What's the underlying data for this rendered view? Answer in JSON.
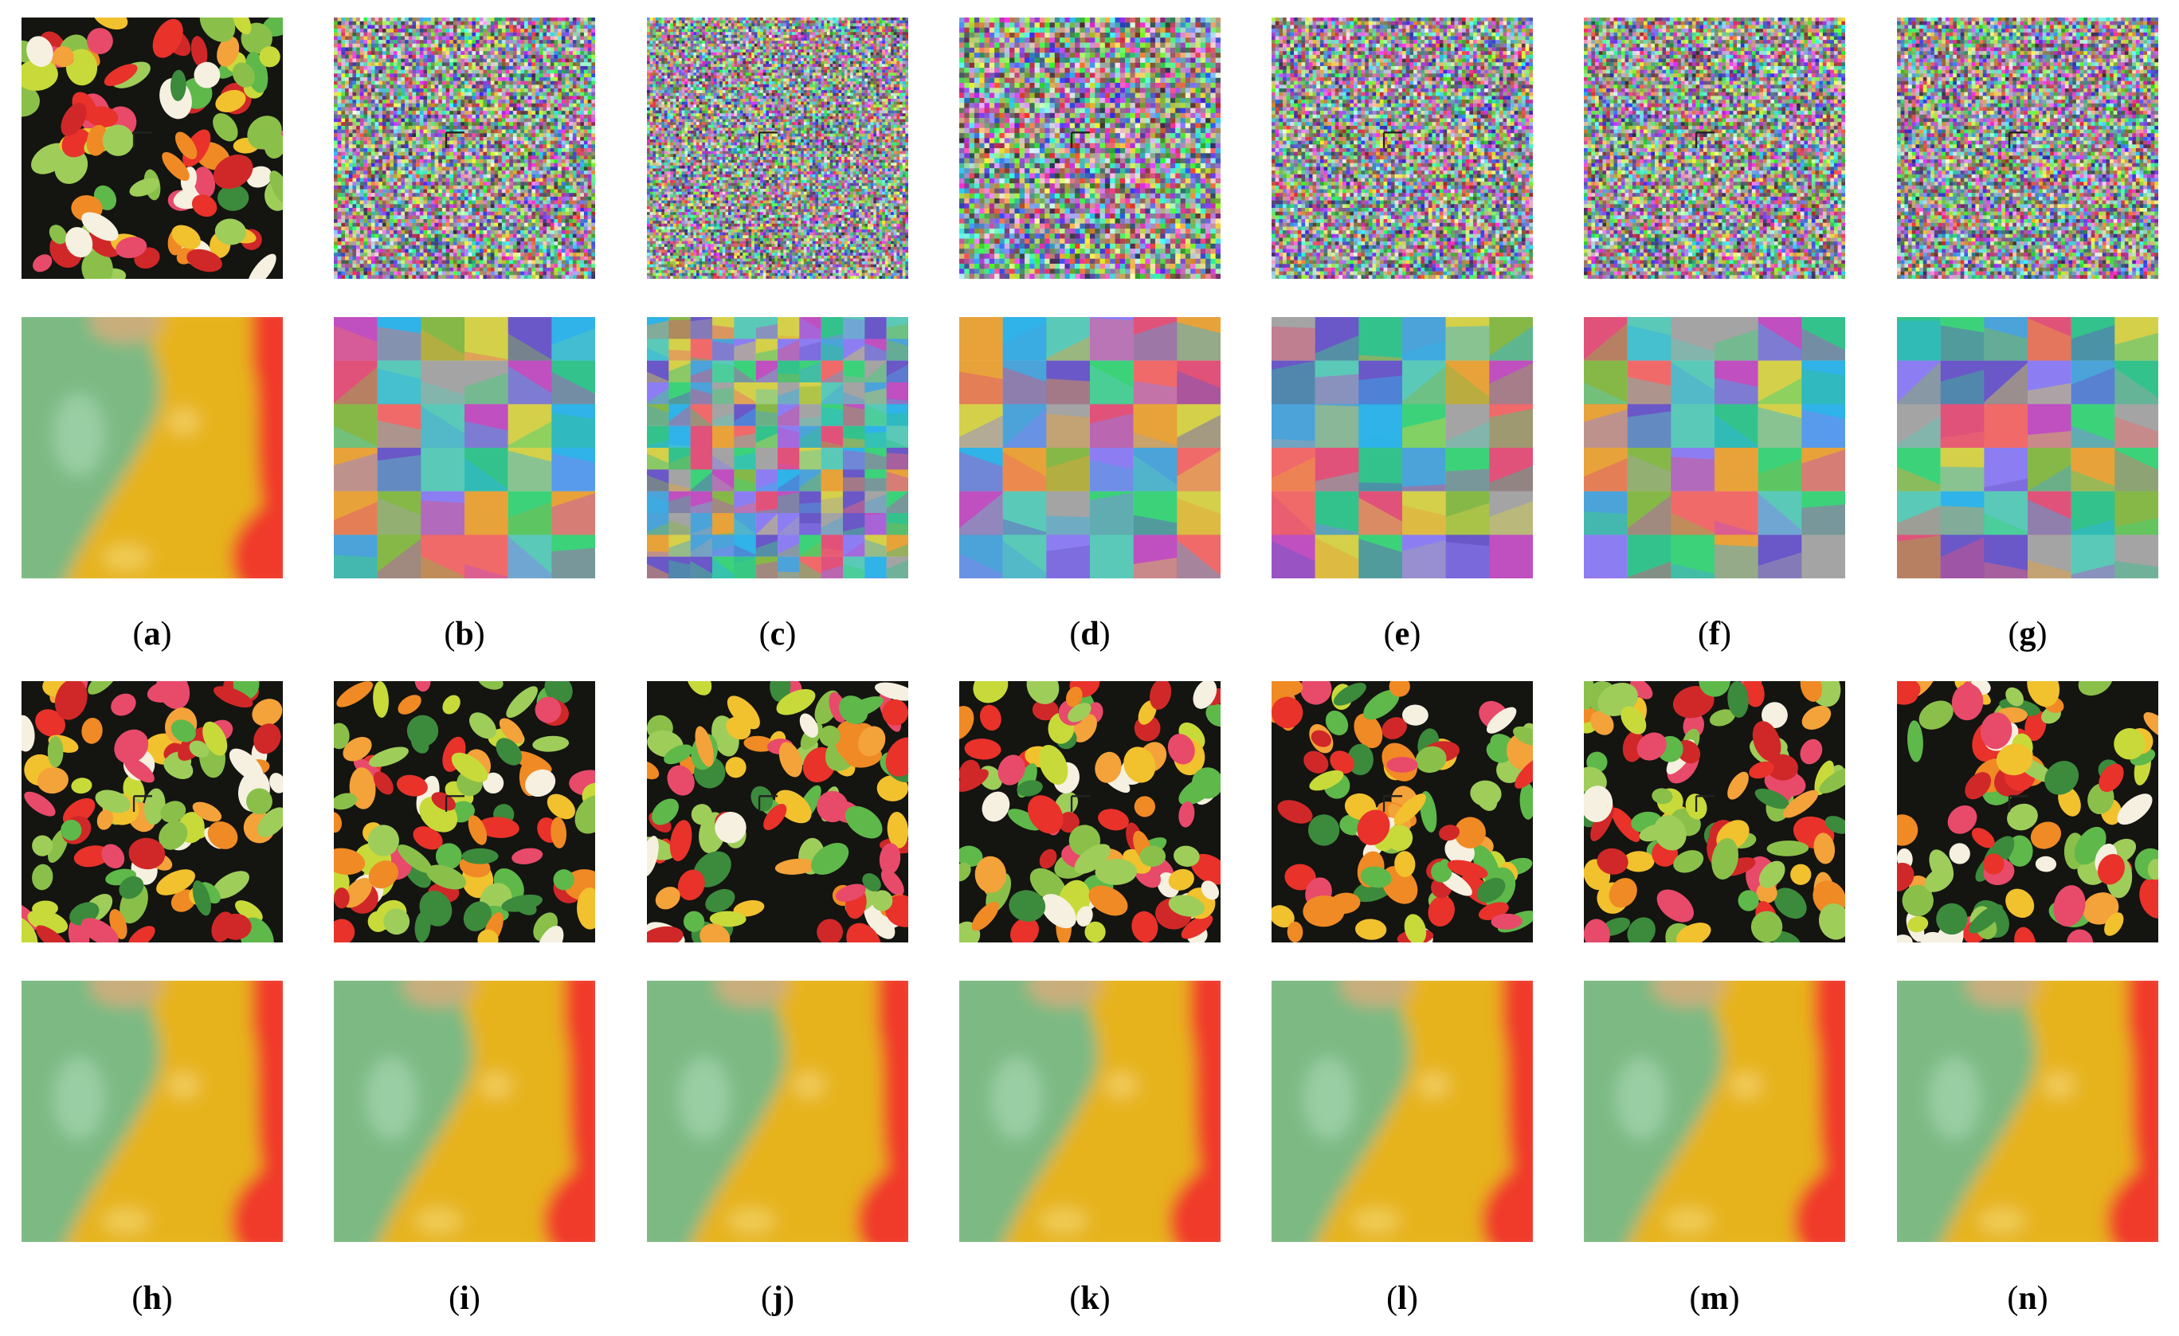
{
  "figure": {
    "top_group": {
      "row_full": [
        {
          "kind": "photo",
          "paren_open": "(",
          "letter": "a",
          "paren_close": ")"
        },
        {
          "kind": "cipher",
          "paren_open": "(",
          "letter": "b",
          "paren_close": ")"
        },
        {
          "kind": "cipher",
          "paren_open": "(",
          "letter": "c",
          "paren_close": ")"
        },
        {
          "kind": "cipher",
          "paren_open": "(",
          "letter": "d",
          "paren_close": ")"
        },
        {
          "kind": "cipher",
          "paren_open": "(",
          "letter": "e",
          "paren_close": ")"
        },
        {
          "kind": "cipher",
          "paren_open": "(",
          "letter": "f",
          "paren_close": ")"
        },
        {
          "kind": "cipher",
          "paren_open": "(",
          "letter": "g",
          "paren_close": ")"
        }
      ]
    },
    "bottom_group": {
      "row_full": [
        {
          "kind": "photo",
          "paren_open": "(",
          "letter": "h",
          "paren_close": ")"
        },
        {
          "kind": "photo",
          "paren_open": "(",
          "letter": "i",
          "paren_close": ")"
        },
        {
          "kind": "photo",
          "paren_open": "(",
          "letter": "j",
          "paren_close": ")"
        },
        {
          "kind": "photo",
          "paren_open": "(",
          "letter": "k",
          "paren_close": ")"
        },
        {
          "kind": "photo",
          "paren_open": "(",
          "letter": "l",
          "paren_close": ")"
        },
        {
          "kind": "photo",
          "paren_open": "(",
          "letter": "m",
          "paren_close": ")"
        },
        {
          "kind": "photo",
          "paren_open": "(",
          "letter": "n",
          "paren_close": ")"
        }
      ]
    },
    "colors": {
      "background": "#ffffff",
      "text": "#000000",
      "zoom_green": "#7bb983",
      "zoom_yellow": "#e6b31f",
      "zoom_red": "#f03a2c",
      "zoom_tan": "#c9ae7c"
    }
  }
}
